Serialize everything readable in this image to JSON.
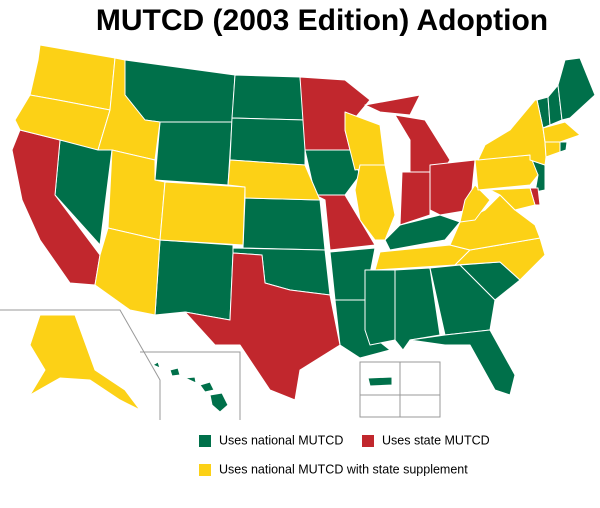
{
  "title": "MUTCD (2003 Edition) Adoption",
  "legend": [
    {
      "label": "Uses national MUTCD",
      "color": "#00704a"
    },
    {
      "label": "Uses state MUTCD",
      "color": "#c1272d"
    },
    {
      "label": "Uses national MUTCD with state supplement",
      "color": "#fcd116"
    }
  ]
}
